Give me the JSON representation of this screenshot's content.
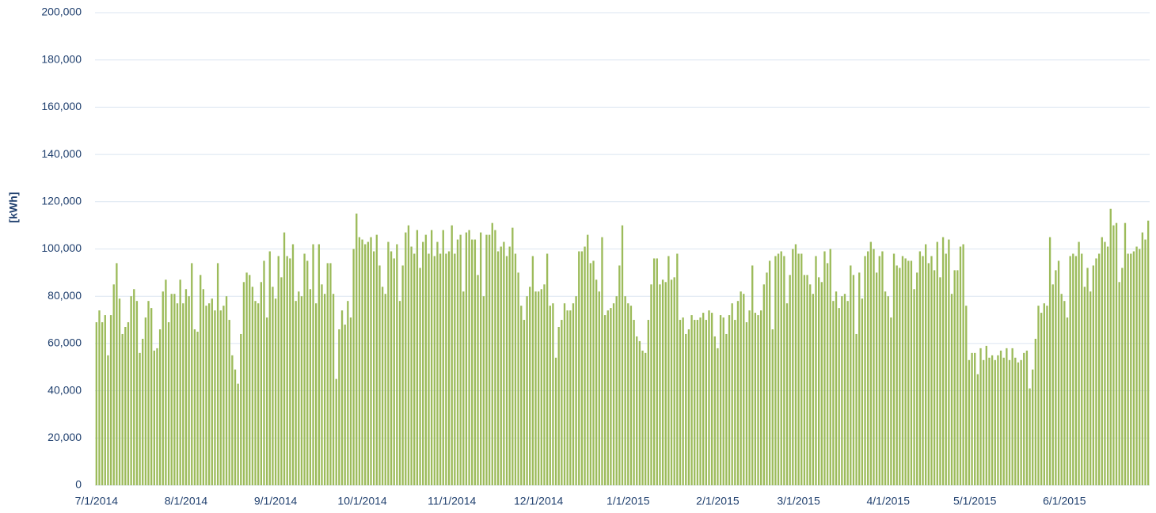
{
  "chart_data": {
    "type": "bar",
    "y_label": "[kWh]",
    "color": "#9cbb5a",
    "grid": true,
    "ylim": [
      0,
      200000
    ],
    "yticks": [
      0,
      {
        "value": 20000,
        "label": "20,000"
      },
      {
        "value": 40000,
        "label": "40,000"
      },
      {
        "value": 60000,
        "label": "60,000"
      },
      {
        "value": 80000,
        "label": "80,000"
      },
      {
        "value": 100000,
        "label": "100,000"
      },
      {
        "value": 120000,
        "label": "120,000"
      },
      {
        "value": 140000,
        "label": "140,000"
      },
      {
        "value": 160000,
        "label": "160,000"
      },
      {
        "value": 180000,
        "label": "180,000"
      },
      {
        "value": 200000,
        "label": "200,000"
      }
    ],
    "categories": [
      "7/1/2014",
      null,
      null,
      null,
      null,
      null,
      null,
      null,
      null,
      null,
      null,
      null,
      null,
      null,
      null,
      null,
      null,
      null,
      null,
      null,
      null,
      null,
      null,
      null,
      null,
      null,
      null,
      null,
      null,
      null,
      null,
      "8/1/2014",
      null,
      null,
      null,
      null,
      null,
      null,
      null,
      null,
      null,
      null,
      null,
      null,
      null,
      null,
      null,
      null,
      null,
      null,
      null,
      null,
      null,
      null,
      null,
      null,
      null,
      null,
      null,
      null,
      null,
      null,
      "9/1/2014",
      null,
      null,
      null,
      null,
      null,
      null,
      null,
      null,
      null,
      null,
      null,
      null,
      null,
      null,
      null,
      null,
      null,
      null,
      null,
      null,
      null,
      null,
      null,
      null,
      null,
      null,
      null,
      null,
      null,
      "10/1/2014",
      null,
      null,
      null,
      null,
      null,
      null,
      null,
      null,
      null,
      null,
      null,
      null,
      null,
      null,
      null,
      null,
      null,
      null,
      null,
      null,
      null,
      null,
      null,
      null,
      null,
      null,
      null,
      null,
      null,
      null,
      "11/1/2014",
      null,
      null,
      null,
      null,
      null,
      null,
      null,
      null,
      null,
      null,
      null,
      null,
      null,
      null,
      null,
      null,
      null,
      null,
      null,
      null,
      null,
      null,
      null,
      null,
      null,
      null,
      null,
      null,
      null,
      "12/1/2014",
      null,
      null,
      null,
      null,
      null,
      null,
      null,
      null,
      null,
      null,
      null,
      null,
      null,
      null,
      null,
      null,
      null,
      null,
      null,
      null,
      null,
      null,
      null,
      null,
      null,
      null,
      null,
      null,
      null,
      null,
      "1/1/2015",
      null,
      null,
      null,
      null,
      null,
      null,
      null,
      null,
      null,
      null,
      null,
      null,
      null,
      null,
      null,
      null,
      null,
      null,
      null,
      null,
      null,
      null,
      null,
      null,
      null,
      null,
      null,
      null,
      null,
      null,
      "2/1/2015",
      null,
      null,
      null,
      null,
      null,
      null,
      null,
      null,
      null,
      null,
      null,
      null,
      null,
      null,
      null,
      null,
      null,
      null,
      null,
      null,
      null,
      null,
      null,
      null,
      null,
      null,
      null,
      "3/1/2015",
      null,
      null,
      null,
      null,
      null,
      null,
      null,
      null,
      null,
      null,
      null,
      null,
      null,
      null,
      null,
      null,
      null,
      null,
      null,
      null,
      null,
      null,
      null,
      null,
      null,
      null,
      null,
      null,
      null,
      null,
      "4/1/2015",
      null,
      null,
      null,
      null,
      null,
      null,
      null,
      null,
      null,
      null,
      null,
      null,
      null,
      null,
      null,
      null,
      null,
      null,
      null,
      null,
      null,
      null,
      null,
      null,
      null,
      null,
      null,
      null,
      null,
      "5/1/2015",
      null,
      null,
      null,
      null,
      null,
      null,
      null,
      null,
      null,
      null,
      null,
      null,
      null,
      null,
      null,
      null,
      null,
      null,
      null,
      null,
      null,
      null,
      null,
      null,
      null,
      null,
      null,
      null,
      null,
      null,
      "6/1/2015",
      null,
      null,
      null,
      null,
      null,
      null,
      null,
      null,
      null,
      null,
      null,
      null,
      null,
      null,
      null,
      null,
      null,
      null,
      null,
      null,
      null,
      null,
      null,
      null,
      null,
      null,
      null,
      null,
      null
    ],
    "values": [
      69000,
      74000,
      69000,
      72000,
      55000,
      72000,
      85000,
      94000,
      79000,
      64000,
      67000,
      69000,
      80000,
      83000,
      78000,
      56000,
      62000,
      71000,
      78000,
      75000,
      57000,
      58000,
      66000,
      82000,
      87000,
      69000,
      81000,
      81000,
      77000,
      87000,
      77000,
      83000,
      80000,
      94000,
      66000,
      65000,
      89000,
      83000,
      76000,
      77000,
      79000,
      74000,
      94000,
      74000,
      76000,
      80000,
      70000,
      55000,
      49000,
      43000,
      64000,
      86000,
      90000,
      89000,
      84000,
      78000,
      77000,
      86000,
      95000,
      71000,
      99000,
      84000,
      79000,
      97000,
      88000,
      107000,
      97000,
      96000,
      102000,
      78000,
      82000,
      80000,
      98000,
      95000,
      83000,
      102000,
      77000,
      102000,
      85000,
      81000,
      94000,
      94000,
      81000,
      45000,
      66000,
      74000,
      68000,
      78000,
      71000,
      100000,
      115000,
      105000,
      104000,
      102000,
      103000,
      105000,
      99000,
      106000,
      93000,
      84000,
      81000,
      103000,
      99000,
      96000,
      102000,
      78000,
      93000,
      107000,
      110000,
      101000,
      98000,
      108000,
      92000,
      103000,
      106000,
      98000,
      108000,
      97000,
      103000,
      98000,
      108000,
      98000,
      99000,
      110000,
      98000,
      104000,
      106000,
      82000,
      107000,
      108000,
      104000,
      104000,
      89000,
      107000,
      80000,
      106000,
      106000,
      111000,
      108000,
      99000,
      101000,
      103000,
      97000,
      101000,
      109000,
      98000,
      90000,
      76000,
      70000,
      80000,
      84000,
      97000,
      82000,
      82000,
      83000,
      85000,
      98000,
      76000,
      77000,
      54000,
      67000,
      70000,
      77000,
      74000,
      74000,
      77000,
      80000,
      99000,
      99000,
      101000,
      106000,
      94000,
      95000,
      87000,
      82000,
      105000,
      72000,
      74000,
      75000,
      77000,
      80000,
      93000,
      110000,
      80000,
      77000,
      76000,
      70000,
      63000,
      61000,
      57000,
      56000,
      70000,
      85000,
      96000,
      96000,
      85000,
      87000,
      86000,
      97000,
      87000,
      88000,
      98000,
      70000,
      71000,
      64000,
      66000,
      72000,
      70000,
      70000,
      71000,
      73000,
      70000,
      74000,
      73000,
      63000,
      58000,
      72000,
      71000,
      64000,
      72000,
      77000,
      70000,
      78000,
      82000,
      81000,
      69000,
      74000,
      93000,
      73000,
      72000,
      74000,
      85000,
      90000,
      95000,
      66000,
      97000,
      98000,
      99000,
      97000,
      77000,
      89000,
      100000,
      102000,
      98000,
      98000,
      89000,
      89000,
      85000,
      81000,
      97000,
      88000,
      86000,
      99000,
      94000,
      100000,
      78000,
      82000,
      75000,
      80000,
      81000,
      78000,
      93000,
      89000,
      64000,
      90000,
      79000,
      97000,
      99000,
      103000,
      100000,
      90000,
      97000,
      99000,
      82000,
      80000,
      71000,
      98000,
      93000,
      92000,
      97000,
      96000,
      95000,
      95000,
      83000,
      90000,
      99000,
      97000,
      102000,
      94000,
      97000,
      91000,
      103000,
      88000,
      105000,
      98000,
      104000,
      81000,
      91000,
      91000,
      101000,
      102000,
      76000,
      53000,
      56000,
      56000,
      47000,
      58000,
      53000,
      59000,
      54000,
      55000,
      53000,
      55000,
      57000,
      54000,
      58000,
      53000,
      58000,
      54000,
      52000,
      53000,
      56000,
      57000,
      41000,
      49000,
      62000,
      76000,
      73000,
      77000,
      76000,
      105000,
      85000,
      91000,
      95000,
      81000,
      78000,
      71000,
      97000,
      98000,
      97000,
      103000,
      98000,
      84000,
      92000,
      82000,
      93000,
      96000,
      98000,
      105000,
      103000,
      101000,
      117000,
      110000,
      111000,
      86000,
      92000,
      111000,
      98000,
      98000,
      99000,
      101000,
      100000,
      107000,
      104000,
      112000
    ]
  }
}
